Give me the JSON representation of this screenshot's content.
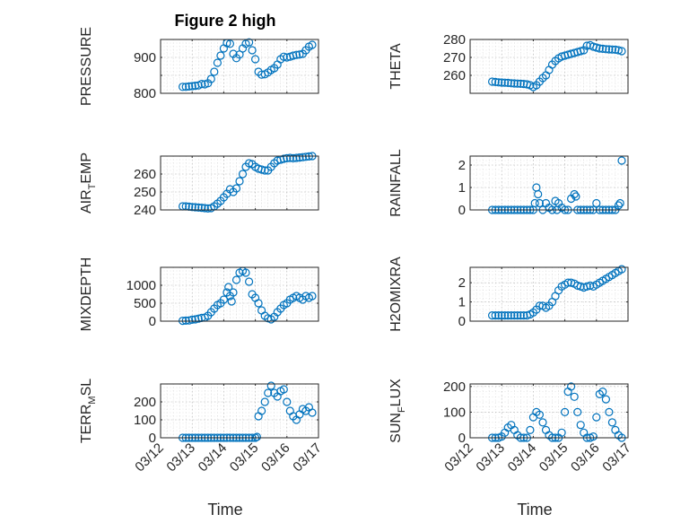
{
  "figure": {
    "title": "Figure 2 high",
    "xlabel": "Time",
    "marker_color": "#0072BD",
    "grid": "on",
    "minor_grid": "on",
    "x_tick_labels": [
      "03/12",
      "03/13",
      "03/14",
      "03/15",
      "03/16",
      "03/17"
    ]
  },
  "chart_data": [
    {
      "type": "scatter",
      "ylabel": "PRESSURE",
      "x_unit": "days since 03/12",
      "xlim": [
        0,
        5
      ],
      "ylim": [
        800,
        950
      ],
      "yticks": [
        800,
        850,
        900
      ],
      "ytick_labels": [
        "800",
        "",
        "900"
      ],
      "x": [
        0.7,
        0.8,
        0.9,
        1.0,
        1.1,
        1.2,
        1.3,
        1.4,
        1.5,
        1.6,
        1.7,
        1.8,
        1.9,
        2.0,
        2.1,
        2.2,
        2.3,
        2.4,
        2.5,
        2.6,
        2.7,
        2.8,
        2.9,
        3.0,
        3.1,
        3.2,
        3.3,
        3.4,
        3.5,
        3.6,
        3.7,
        3.8,
        3.9,
        4.0,
        4.1,
        4.2,
        4.3,
        4.4,
        4.5,
        4.6,
        4.7,
        4.8
      ],
      "y": [
        818,
        818,
        819,
        820,
        821,
        822,
        826,
        825,
        828,
        840,
        860,
        885,
        905,
        925,
        940,
        938,
        910,
        898,
        908,
        925,
        938,
        942,
        920,
        895,
        860,
        852,
        853,
        858,
        865,
        870,
        880,
        895,
        902,
        900,
        902,
        905,
        907,
        908,
        910,
        920,
        930,
        935
      ]
    },
    {
      "type": "scatter",
      "ylabel": "THETA",
      "x_unit": "days since 03/12",
      "xlim": [
        0,
        5
      ],
      "ylim": [
        250,
        280
      ],
      "yticks": [
        260,
        270,
        280
      ],
      "ytick_labels": [
        "260",
        "270",
        "280"
      ],
      "x": [
        0.7,
        0.8,
        0.9,
        1.0,
        1.1,
        1.2,
        1.3,
        1.4,
        1.5,
        1.6,
        1.7,
        1.8,
        1.9,
        2.0,
        2.1,
        2.2,
        2.3,
        2.4,
        2.5,
        2.6,
        2.7,
        2.8,
        2.9,
        3.0,
        3.1,
        3.2,
        3.3,
        3.4,
        3.5,
        3.6,
        3.7,
        3.8,
        3.9,
        4.0,
        4.1,
        4.2,
        4.3,
        4.4,
        4.5,
        4.6,
        4.7,
        4.8
      ],
      "y": [
        256.5,
        256.3,
        256.1,
        256.0,
        255.9,
        255.8,
        255.6,
        255.5,
        255.4,
        255.3,
        255.2,
        255.0,
        254.5,
        253.5,
        254.5,
        256.5,
        258.5,
        260.0,
        263.0,
        266.0,
        268.0,
        269.5,
        270.5,
        271.0,
        271.5,
        272.0,
        272.5,
        273.0,
        273.5,
        274.0,
        276.5,
        276.8,
        276.0,
        275.5,
        275.0,
        274.8,
        274.6,
        274.5,
        274.4,
        274.3,
        274.0,
        273.5
      ]
    },
    {
      "type": "scatter",
      "ylabel_main": "AIR",
      "ylabel_sub": "T",
      "ylabel_rest": "EMP",
      "x_unit": "days since 03/12",
      "xlim": [
        0,
        5
      ],
      "ylim": [
        240,
        270
      ],
      "yticks": [
        240,
        250,
        260
      ],
      "ytick_labels": [
        "240",
        "250",
        "260"
      ],
      "x": [
        0.7,
        0.8,
        0.9,
        1.0,
        1.1,
        1.2,
        1.3,
        1.4,
        1.5,
        1.6,
        1.7,
        1.8,
        1.9,
        2.0,
        2.1,
        2.2,
        2.3,
        2.4,
        2.5,
        2.6,
        2.7,
        2.8,
        2.9,
        3.0,
        3.1,
        3.2,
        3.3,
        3.4,
        3.5,
        3.6,
        3.7,
        3.8,
        3.9,
        4.0,
        4.1,
        4.2,
        4.3,
        4.4,
        4.5,
        4.6,
        4.7,
        4.8
      ],
      "y": [
        242,
        242,
        241.8,
        241.6,
        241.5,
        241.3,
        241.2,
        241.0,
        240.8,
        241.0,
        242.0,
        243.5,
        245.0,
        247.0,
        249.0,
        251.5,
        250.0,
        252.0,
        256.0,
        260.0,
        264.0,
        266.0,
        265.5,
        264.0,
        263.0,
        262.5,
        262.0,
        262.0,
        264.0,
        266.0,
        267.5,
        268.0,
        268.5,
        268.8,
        269.0,
        268.8,
        269.0,
        269.2,
        269.4,
        269.6,
        269.8,
        270.0
      ]
    },
    {
      "type": "scatter",
      "ylabel": "RAINFALL",
      "x_unit": "days since 03/12",
      "xlim": [
        0,
        5
      ],
      "ylim": [
        0,
        2.4
      ],
      "yticks": [
        0,
        1,
        2
      ],
      "ytick_labels": [
        "0",
        "1",
        "2"
      ],
      "x": [
        0.7,
        0.8,
        0.9,
        1.0,
        1.1,
        1.2,
        1.3,
        1.4,
        1.5,
        1.6,
        1.7,
        1.8,
        1.9,
        2.0,
        2.05,
        2.1,
        2.15,
        2.2,
        2.3,
        2.4,
        2.5,
        2.6,
        2.7,
        2.75,
        2.8,
        2.9,
        3.0,
        3.1,
        3.2,
        3.3,
        3.35,
        3.4,
        3.5,
        3.6,
        3.7,
        3.8,
        3.9,
        4.0,
        4.1,
        4.2,
        4.3,
        4.4,
        4.5,
        4.6,
        4.7,
        4.75,
        4.8
      ],
      "y": [
        0,
        0,
        0,
        0,
        0,
        0,
        0,
        0,
        0,
        0,
        0,
        0,
        0,
        0,
        0.3,
        1.0,
        0.7,
        0.3,
        0,
        0.3,
        0.1,
        0,
        0.4,
        0,
        0.3,
        0.1,
        0,
        0,
        0.5,
        0.7,
        0.6,
        0,
        0,
        0,
        0,
        0,
        0,
        0.3,
        0,
        0,
        0,
        0,
        0,
        0,
        0.2,
        0.3,
        2.2
      ]
    },
    {
      "type": "scatter",
      "ylabel": "MIXDEPTH",
      "x_unit": "days since 03/12",
      "xlim": [
        0,
        5
      ],
      "ylim": [
        0,
        1500
      ],
      "yticks": [
        0,
        500,
        1000
      ],
      "ytick_labels": [
        "0",
        "500",
        "1000"
      ],
      "x": [
        0.7,
        0.8,
        0.9,
        1.0,
        1.1,
        1.2,
        1.3,
        1.4,
        1.5,
        1.6,
        1.7,
        1.8,
        1.9,
        2.0,
        2.1,
        2.15,
        2.2,
        2.25,
        2.3,
        2.4,
        2.5,
        2.6,
        2.7,
        2.8,
        2.9,
        3.0,
        3.1,
        3.2,
        3.3,
        3.4,
        3.5,
        3.6,
        3.7,
        3.8,
        3.9,
        4.0,
        4.1,
        4.2,
        4.3,
        4.4,
        4.5,
        4.6,
        4.7,
        4.8
      ],
      "y": [
        10,
        15,
        20,
        40,
        50,
        70,
        90,
        100,
        150,
        250,
        350,
        450,
        500,
        600,
        800,
        950,
        700,
        550,
        800,
        1150,
        1350,
        1400,
        1350,
        1100,
        750,
        650,
        500,
        300,
        150,
        80,
        50,
        120,
        250,
        350,
        450,
        500,
        600,
        650,
        700,
        650,
        600,
        700,
        650,
        700
      ]
    },
    {
      "type": "scatter",
      "ylabel": "H2OMIXRA",
      "x_unit": "days since 03/12",
      "xlim": [
        0,
        5
      ],
      "ylim": [
        0,
        2.8
      ],
      "yticks": [
        0,
        1,
        2
      ],
      "ytick_labels": [
        "0",
        "1",
        "2"
      ],
      "x": [
        0.7,
        0.8,
        0.9,
        1.0,
        1.1,
        1.2,
        1.3,
        1.4,
        1.5,
        1.6,
        1.7,
        1.8,
        1.9,
        2.0,
        2.1,
        2.2,
        2.3,
        2.4,
        2.5,
        2.6,
        2.7,
        2.8,
        2.9,
        3.0,
        3.1,
        3.2,
        3.3,
        3.4,
        3.5,
        3.6,
        3.7,
        3.8,
        3.9,
        4.0,
        4.1,
        4.2,
        4.3,
        4.4,
        4.5,
        4.6,
        4.7,
        4.8
      ],
      "y": [
        0.3,
        0.3,
        0.3,
        0.3,
        0.3,
        0.3,
        0.3,
        0.3,
        0.3,
        0.3,
        0.3,
        0.3,
        0.35,
        0.45,
        0.6,
        0.8,
        0.8,
        0.7,
        0.8,
        1.0,
        1.3,
        1.6,
        1.8,
        1.9,
        2.0,
        2.0,
        1.95,
        1.85,
        1.8,
        1.75,
        1.8,
        1.85,
        1.8,
        1.9,
        2.0,
        2.1,
        2.2,
        2.3,
        2.4,
        2.5,
        2.6,
        2.7
      ]
    },
    {
      "type": "scatter",
      "ylabel_main": "TERR",
      "ylabel_sub": "M",
      "ylabel_rest": "SL",
      "x_unit": "days since 03/12",
      "xlim": [
        0,
        5
      ],
      "ylim": [
        0,
        300
      ],
      "yticks": [
        0,
        100,
        200
      ],
      "ytick_labels": [
        "0",
        "100",
        "200"
      ],
      "x": [
        0.7,
        0.8,
        0.9,
        1.0,
        1.1,
        1.2,
        1.3,
        1.4,
        1.5,
        1.6,
        1.7,
        1.8,
        1.9,
        2.0,
        2.1,
        2.2,
        2.3,
        2.4,
        2.5,
        2.6,
        2.7,
        2.8,
        2.9,
        3.0,
        3.05,
        3.1,
        3.2,
        3.3,
        3.4,
        3.5,
        3.6,
        3.7,
        3.8,
        3.9,
        4.0,
        4.1,
        4.2,
        4.3,
        4.4,
        4.5,
        4.6,
        4.7,
        4.8
      ],
      "y": [
        0,
        0,
        0,
        0,
        0,
        0,
        0,
        0,
        0,
        0,
        0,
        0,
        0,
        0,
        0,
        0,
        0,
        0,
        0,
        0,
        0,
        0,
        0,
        0,
        5,
        120,
        150,
        200,
        250,
        290,
        250,
        230,
        260,
        270,
        200,
        150,
        120,
        100,
        130,
        160,
        150,
        170,
        140
      ]
    },
    {
      "type": "scatter",
      "ylabel_main": "SUN",
      "ylabel_sub": "F",
      "ylabel_rest": "LUX",
      "x_unit": "days since 03/12",
      "xlim": [
        0,
        5
      ],
      "ylim": [
        0,
        210
      ],
      "yticks": [
        0,
        100,
        200
      ],
      "ytick_labels": [
        "0",
        "100",
        "200"
      ],
      "x": [
        0.7,
        0.8,
        0.9,
        1.0,
        1.1,
        1.2,
        1.3,
        1.4,
        1.5,
        1.6,
        1.7,
        1.8,
        1.9,
        2.0,
        2.1,
        2.2,
        2.3,
        2.4,
        2.5,
        2.6,
        2.7,
        2.8,
        2.9,
        3.0,
        3.1,
        3.2,
        3.3,
        3.4,
        3.5,
        3.6,
        3.7,
        3.8,
        3.9,
        4.0,
        4.1,
        4.2,
        4.3,
        4.4,
        4.5,
        4.6,
        4.7,
        4.8
      ],
      "y": [
        0,
        0,
        0,
        5,
        20,
        40,
        50,
        30,
        10,
        0,
        0,
        0,
        30,
        80,
        100,
        90,
        60,
        30,
        10,
        0,
        0,
        0,
        20,
        100,
        180,
        200,
        160,
        100,
        50,
        20,
        0,
        0,
        5,
        80,
        170,
        180,
        150,
        100,
        60,
        30,
        10,
        0
      ]
    }
  ]
}
